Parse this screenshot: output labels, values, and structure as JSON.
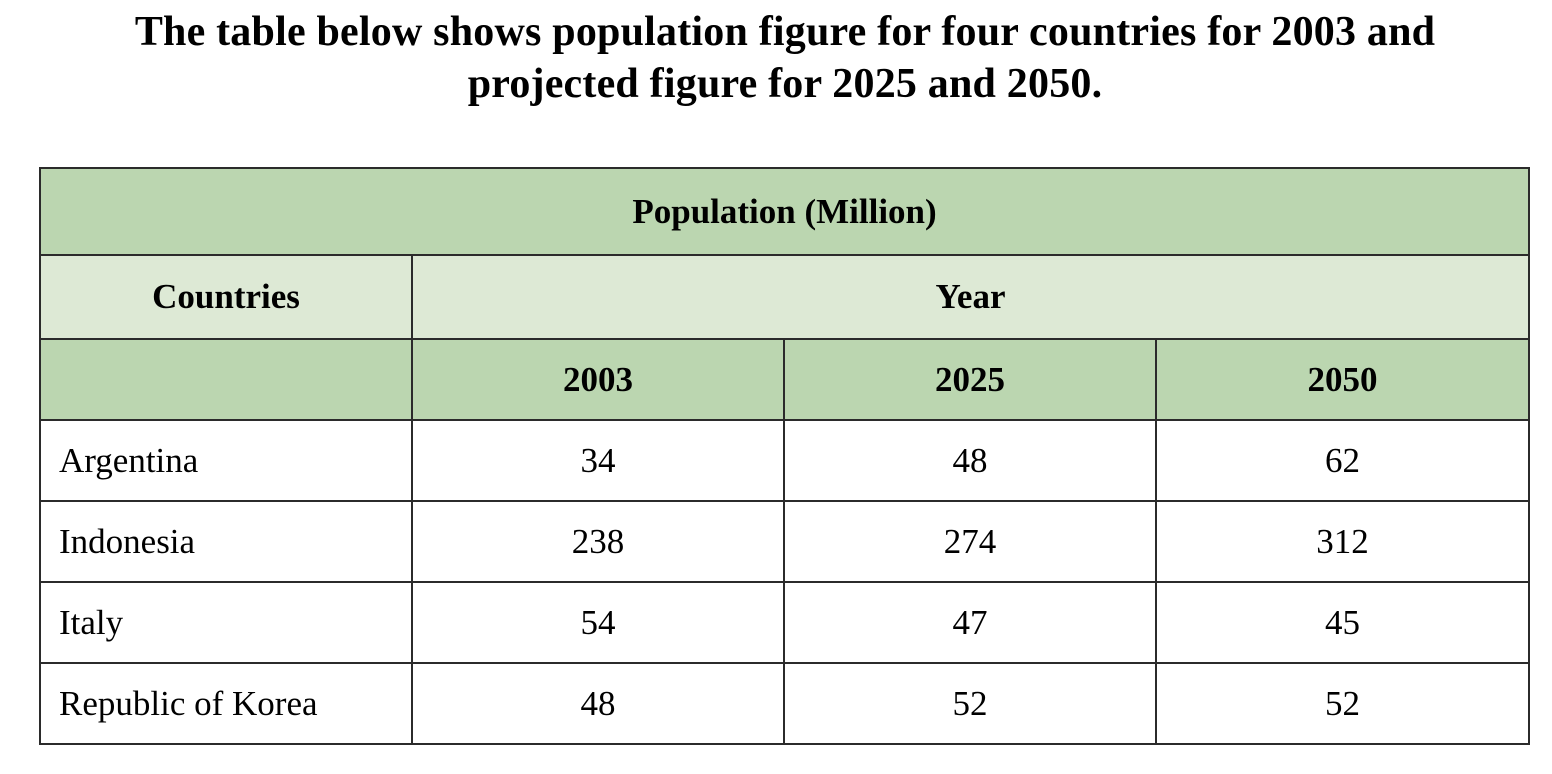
{
  "title": "The table below shows population figure for four countries for 2003 and projected figure for 2025 and 2050.",
  "table": {
    "caption": "Population (Million)",
    "countries_header": "Countries",
    "year_header": "Year",
    "years": [
      "2003",
      "2025",
      "2050"
    ],
    "rows": [
      {
        "country": "Argentina",
        "values": [
          "34",
          "48",
          "62"
        ]
      },
      {
        "country": "Indonesia",
        "values": [
          "238",
          "274",
          "312"
        ]
      },
      {
        "country": "Italy",
        "values": [
          "54",
          "47",
          "45"
        ]
      },
      {
        "country": "Republic of Korea",
        "values": [
          "48",
          "52",
          "52"
        ]
      }
    ]
  },
  "colors": {
    "header_dark": "#bbd6b0",
    "header_light": "#dde9d5",
    "border": "#2b2b2b"
  },
  "chart_data": {
    "type": "table",
    "title": "The table below shows population figure for four countries for 2003 and projected figure for 2025 and 2050.",
    "subtitle": "Population (Million)",
    "columns": [
      "Countries",
      "2003",
      "2025",
      "2050"
    ],
    "categories": [
      "Argentina",
      "Indonesia",
      "Italy",
      "Republic of Korea"
    ],
    "x": [
      "2003",
      "2025",
      "2050"
    ],
    "series": [
      {
        "name": "Argentina",
        "values": [
          34,
          48,
          62
        ]
      },
      {
        "name": "Indonesia",
        "values": [
          238,
          274,
          312
        ]
      },
      {
        "name": "Italy",
        "values": [
          54,
          47,
          45
        ]
      },
      {
        "name": "Republic of Korea",
        "values": [
          48,
          52,
          52
        ]
      }
    ]
  }
}
